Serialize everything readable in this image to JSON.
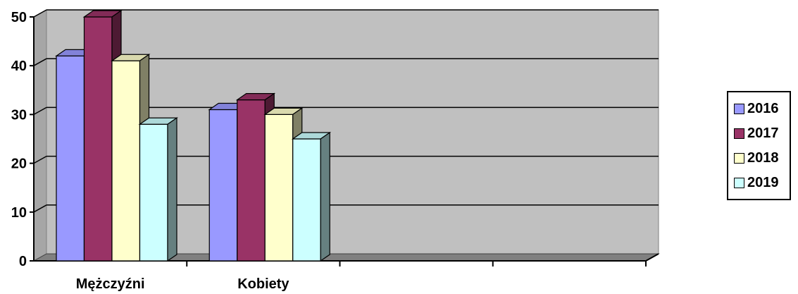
{
  "chart_data": {
    "type": "bar",
    "categories": [
      "Mężczyźni",
      "Kobiety",
      "",
      ""
    ],
    "series": [
      {
        "name": "2016",
        "values": [
          42,
          31,
          null,
          null
        ],
        "color": "#9999ff"
      },
      {
        "name": "2017",
        "values": [
          50,
          33,
          null,
          null
        ],
        "color": "#993366"
      },
      {
        "name": "2018",
        "values": [
          41,
          30,
          null,
          null
        ],
        "color": "#ffffcc"
      },
      {
        "name": "2019",
        "values": [
          28,
          25,
          null,
          null
        ],
        "color": "#ccffff"
      }
    ],
    "ylim": [
      0,
      50
    ],
    "yticks": [
      "0",
      "10",
      "20",
      "30",
      "40",
      "50"
    ],
    "grid": true,
    "legend_position": "right",
    "wall_color": "#c0c0c0",
    "three_d": true
  }
}
